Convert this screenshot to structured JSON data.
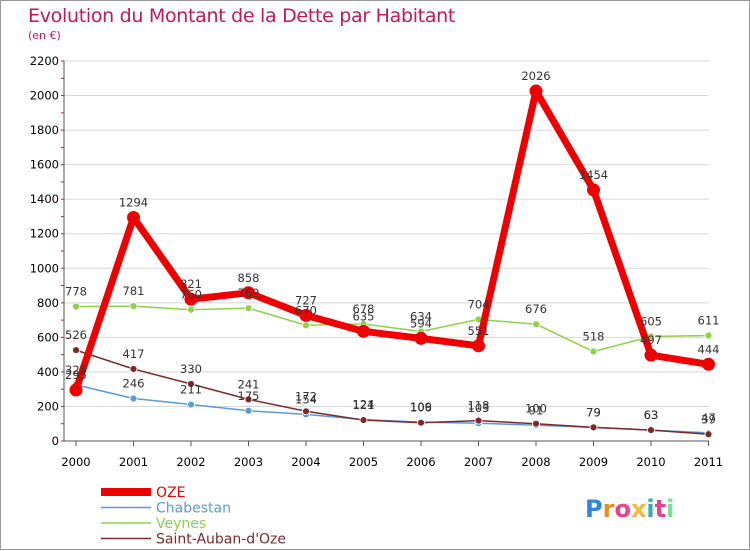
{
  "header": {
    "title": "Evolution du Montant de la Dette par Habitant",
    "subtitle": "(en €)"
  },
  "brand": {
    "letters": [
      "P",
      "r",
      "o",
      "x",
      "i",
      "t",
      "i"
    ],
    "colors": [
      "#2e86de",
      "#e58e26",
      "#e84393",
      "#f6b93b",
      "#38ada9",
      "#e84393",
      "#78e08f"
    ]
  },
  "colors": {
    "title": "#c2185b",
    "grid": "#d8d8d8",
    "axis": "#555555"
  },
  "chart_data": {
    "type": "line",
    "x": [
      "2000",
      "2001",
      "2002",
      "2003",
      "2004",
      "2005",
      "2006",
      "2007",
      "2008",
      "2009",
      "2010",
      "2011"
    ],
    "ylim": [
      0,
      2200
    ],
    "yticks": [
      "0",
      "200",
      "400",
      "600",
      "800",
      "1000",
      "1200",
      "1400",
      "1600",
      "1800",
      "2000",
      "2200"
    ],
    "grid": "horizontal",
    "legend_position": "bottom-left",
    "series": [
      {
        "name": "OZE",
        "color": "#ee0000",
        "values": [
          295,
          1294,
          821,
          858,
          727,
          635,
          594,
          551,
          2026,
          1454,
          497,
          444
        ],
        "labels": [
          "295",
          "1294",
          "821",
          "858",
          "727",
          "635",
          "594",
          "551",
          "2026",
          "1454",
          "497",
          "444"
        ]
      },
      {
        "name": "Chabestan",
        "color": "#5b9bd5",
        "values": [
          325,
          246,
          211,
          175,
          154,
          124,
          109,
          103,
          91,
          79,
          63,
          47
        ],
        "labels": [
          "325",
          "246",
          "211",
          "175",
          "154",
          "124",
          "109",
          "103",
          "91",
          "79",
          "63",
          "47"
        ]
      },
      {
        "name": "Veynes",
        "color": "#8ed14a",
        "values": [
          778,
          781,
          760,
          769,
          670,
          678,
          634,
          704,
          676,
          518,
          605,
          611
        ],
        "labels": [
          "778",
          "781",
          "760",
          "769",
          "670",
          "678",
          "634",
          "704",
          "676",
          "518",
          "605",
          "611"
        ]
      },
      {
        "name": "Saint-Auban-d'Oze",
        "color": "#7a2a2a",
        "values": [
          526,
          417,
          330,
          241,
          172,
          121,
          106,
          118,
          100,
          79,
          63,
          39
        ],
        "labels": [
          "526",
          "417",
          "330",
          "241",
          "172",
          "121",
          "106",
          "118",
          "100",
          "79",
          "63",
          "39"
        ]
      }
    ]
  }
}
